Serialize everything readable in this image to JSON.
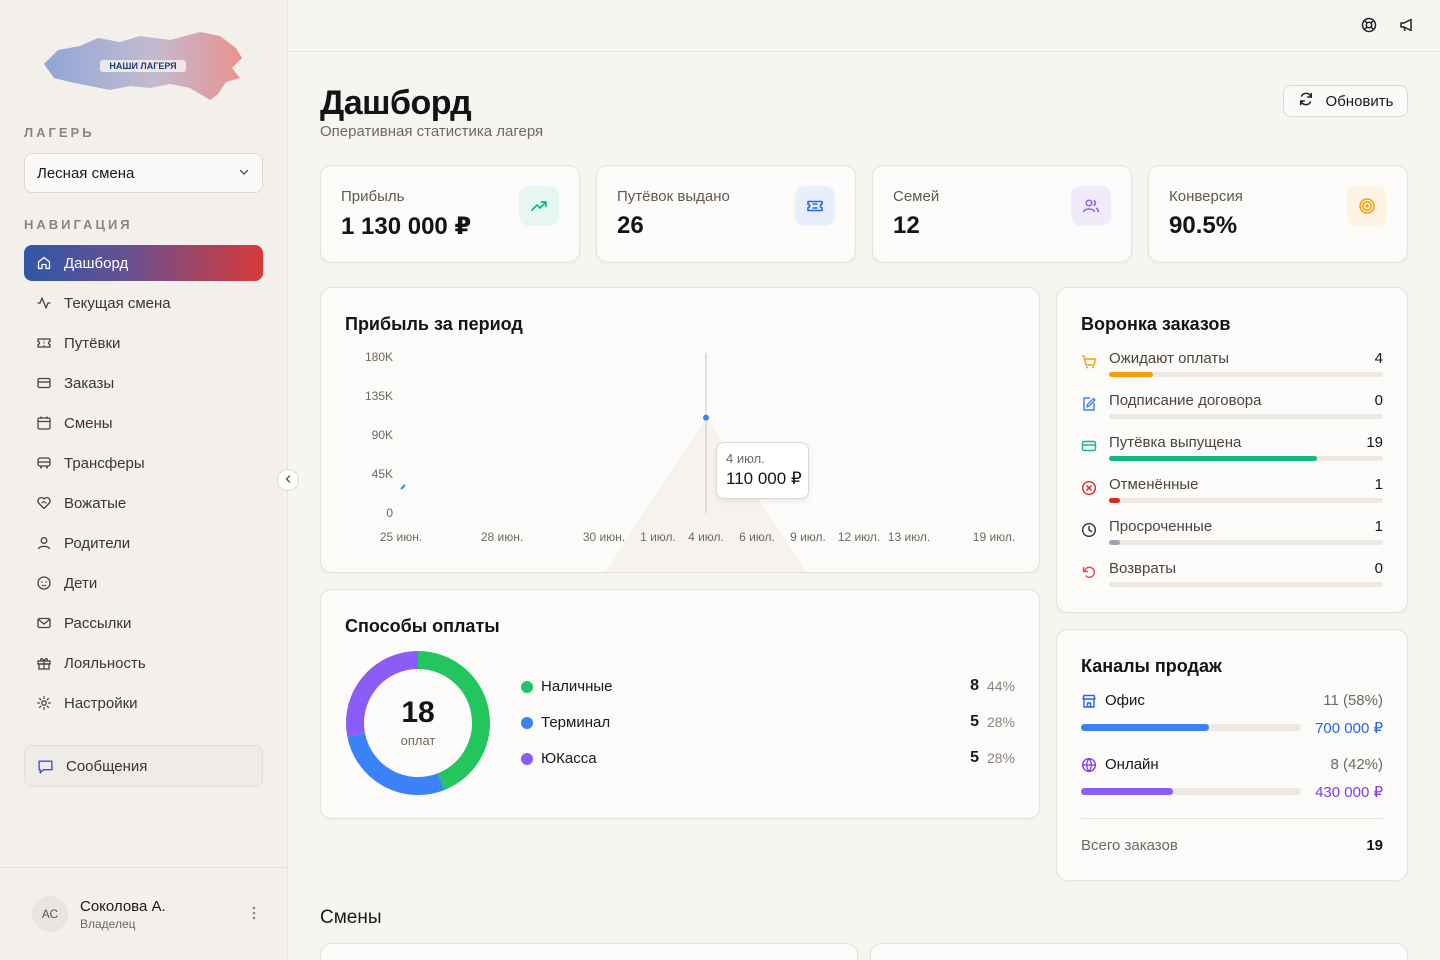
{
  "sidebar": {
    "logo_text": "НАШИ ЛАГЕРЯ",
    "camp_label": "ЛАГЕРЬ",
    "camp_value": "Лесная смена",
    "nav_label": "НАВИГАЦИЯ",
    "items": [
      {
        "label": "Дашборд",
        "icon": "home-icon",
        "active": true
      },
      {
        "label": "Текущая смена",
        "icon": "activity-icon"
      },
      {
        "label": "Путёвки",
        "icon": "ticket-icon"
      },
      {
        "label": "Заказы",
        "icon": "credit-card-icon"
      },
      {
        "label": "Смены",
        "icon": "calendar-icon"
      },
      {
        "label": "Трансферы",
        "icon": "bus-icon"
      },
      {
        "label": "Вожатые",
        "icon": "heart-handshake-icon"
      },
      {
        "label": "Родители",
        "icon": "user-icon"
      },
      {
        "label": "Дети",
        "icon": "baby-icon"
      },
      {
        "label": "Рассылки",
        "icon": "mail-icon"
      },
      {
        "label": "Лояльность",
        "icon": "gift-icon"
      },
      {
        "label": "Настройки",
        "icon": "gear-icon"
      }
    ],
    "messages_label": "Сообщения",
    "user": {
      "initials": "АС",
      "name": "Соколова А.",
      "role": "Владелец"
    }
  },
  "header": {
    "title": "Дашборд",
    "subtitle": "Оперативная статистика лагеря",
    "refresh_label": "Обновить"
  },
  "stats": [
    {
      "label": "Прибыль",
      "value": "1 130 000 ₽",
      "icon": "trending-up-icon",
      "color": "#10b981",
      "bg": "#e6f7f0"
    },
    {
      "label": "Путёвок выдано",
      "value": "26",
      "icon": "ticket-icon",
      "color": "#2563eb",
      "bg": "#e8effc"
    },
    {
      "label": "Семей",
      "value": "12",
      "icon": "users-icon",
      "color": "#8b5cf6",
      "bg": "#f0ebfb"
    },
    {
      "label": "Конверсия",
      "value": "90.5%",
      "icon": "target-icon",
      "color": "#f59e0b",
      "bg": "#fdf4e3"
    }
  ],
  "profit_chart": {
    "title": "Прибыль за период",
    "tooltip_date": "4 июл.",
    "tooltip_value": "110 000 ₽"
  },
  "chart_data": {
    "type": "area",
    "title": "Прибыль за период",
    "ylim": [
      0,
      180000
    ],
    "y_ticks": [
      "0",
      "45K",
      "90K",
      "135K",
      "180K"
    ],
    "y_tick_values": [
      0,
      45000,
      90000,
      135000,
      180000
    ],
    "x_ticks": [
      "25 июн.",
      "28 июн.",
      "30 июн.",
      "1 июл.",
      "4 июл.",
      "6 июл.",
      "9 июл.",
      "12 июл.",
      "13 июл.",
      "19 июл."
    ],
    "series": [
      {
        "values": [
          {
            "x": "25 июн.",
            "y": 30000
          },
          {
            "x": "4 июл.",
            "y": 110000
          }
        ]
      }
    ]
  },
  "funnel": {
    "title": "Воронка заказов",
    "rows": [
      {
        "label": "Ожидают оплаты",
        "count": "4",
        "color": "#f59e0b",
        "ratio": 0.16,
        "icon": "cart-icon"
      },
      {
        "label": "Подписание договора",
        "count": "0",
        "color": "#3b82f6",
        "ratio": 0,
        "icon": "file-edit-icon"
      },
      {
        "label": "Путёвка выпущена",
        "count": "19",
        "color": "#10b981",
        "ratio": 0.76,
        "icon": "card-icon"
      },
      {
        "label": "Отменённые",
        "count": "1",
        "color": "#dc2626",
        "ratio": 0.04,
        "icon": "x-circle-icon"
      },
      {
        "label": "Просроченные",
        "count": "1",
        "color": "#9ca3af",
        "ratio": 0.04,
        "icon": "clock-icon"
      },
      {
        "label": "Возвраты",
        "count": "0",
        "color": "#ef4444",
        "ratio": 0,
        "icon": "undo-icon"
      }
    ]
  },
  "payments": {
    "title": "Способы оплаты",
    "total": "18",
    "total_label": "оплат",
    "rows": [
      {
        "name": "Наличные",
        "count": "8",
        "pct": "44%",
        "color": "#22c55e",
        "share": 0.44
      },
      {
        "name": "Терминал",
        "count": "5",
        "pct": "28%",
        "color": "#3b82f6",
        "share": 0.28
      },
      {
        "name": "ЮКасса",
        "count": "5",
        "pct": "28%",
        "color": "#8b5cf6",
        "share": 0.28
      }
    ]
  },
  "channels": {
    "title": "Каналы продаж",
    "rows": [
      {
        "name": "Офис",
        "count": "11 (58%)",
        "sum": "700 000 ₽",
        "color": "#3b82f6",
        "ratio": 0.58,
        "icon": "store-icon"
      },
      {
        "name": "Онлайн",
        "count": "8 (42%)",
        "sum": "430 000 ₽",
        "color": "#8b5cf6",
        "ratio": 0.42,
        "icon": "globe-icon"
      }
    ],
    "total_label": "Всего заказов",
    "total_value": "19"
  },
  "shifts_heading": "Смены"
}
